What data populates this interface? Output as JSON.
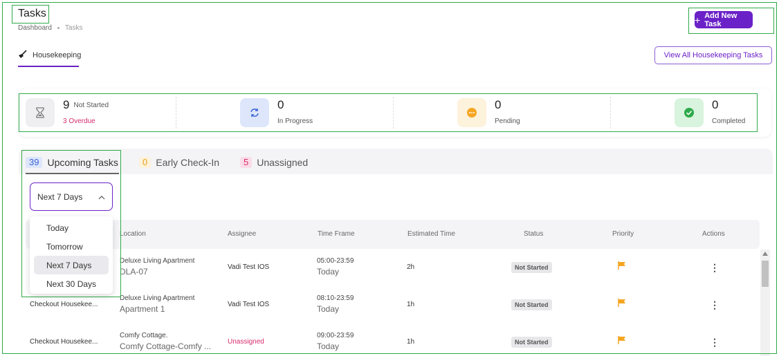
{
  "header": {
    "title": "Tasks",
    "breadcrumb": [
      "Dashboard",
      "Tasks"
    ],
    "add_button": "Add New Task"
  },
  "section_tab": {
    "label": "Housekeeping",
    "icon": "broom-icon"
  },
  "view_all_button": "View All Housekeeping Tasks",
  "stats": {
    "not_started": {
      "count": "9",
      "label": "Not Started",
      "overdue": "3 Overdue"
    },
    "in_progress": {
      "count": "0",
      "label": "In Progress"
    },
    "pending": {
      "count": "0",
      "label": "Pending"
    },
    "completed": {
      "count": "0",
      "label": "Completed"
    }
  },
  "task_tabs": [
    {
      "count": "39",
      "label": "Upcoming Tasks"
    },
    {
      "count": "0",
      "label": "Early Check-In"
    },
    {
      "count": "5",
      "label": "Unassigned"
    }
  ],
  "filter": {
    "selected": "Next 7 Days",
    "options": [
      "Today",
      "Tomorrow",
      "Next 7 Days",
      "Next 30 Days"
    ]
  },
  "table": {
    "columns": [
      "Location",
      "Assignee",
      "Time Frame",
      "Estimated Time",
      "Status",
      "Priority",
      "Actions"
    ],
    "rows": [
      {
        "task": "",
        "location_type": "Deluxe Living Apartment",
        "location_name": "DLA-07",
        "assignee": "Vadi Test IOS",
        "time": "05:00-23:59",
        "day": "Today",
        "estimate": "2h",
        "status": "Not Started"
      },
      {
        "task": "Checkout Housekee...",
        "location_type": "Deluxe Living Apartment",
        "location_name": "Apartment 1",
        "assignee": "Vadi Test IOS",
        "time": "08:10-23:59",
        "day": "Today",
        "estimate": "1h",
        "status": "Not Started"
      },
      {
        "task": "Checkout Housekee...",
        "location_type": "Comfy Cottage.",
        "location_name": "Comfy Cottage-Comfy ...",
        "assignee": "Unassigned",
        "time": "09:00-23:59",
        "day": "Today",
        "estimate": "1h",
        "status": "Not Started"
      }
    ]
  },
  "colors": {
    "accent": "#6b21c8",
    "overdue": "#d62c6b",
    "priority_flag": "#f5a623",
    "highlight_box": "#2eaa4a"
  }
}
